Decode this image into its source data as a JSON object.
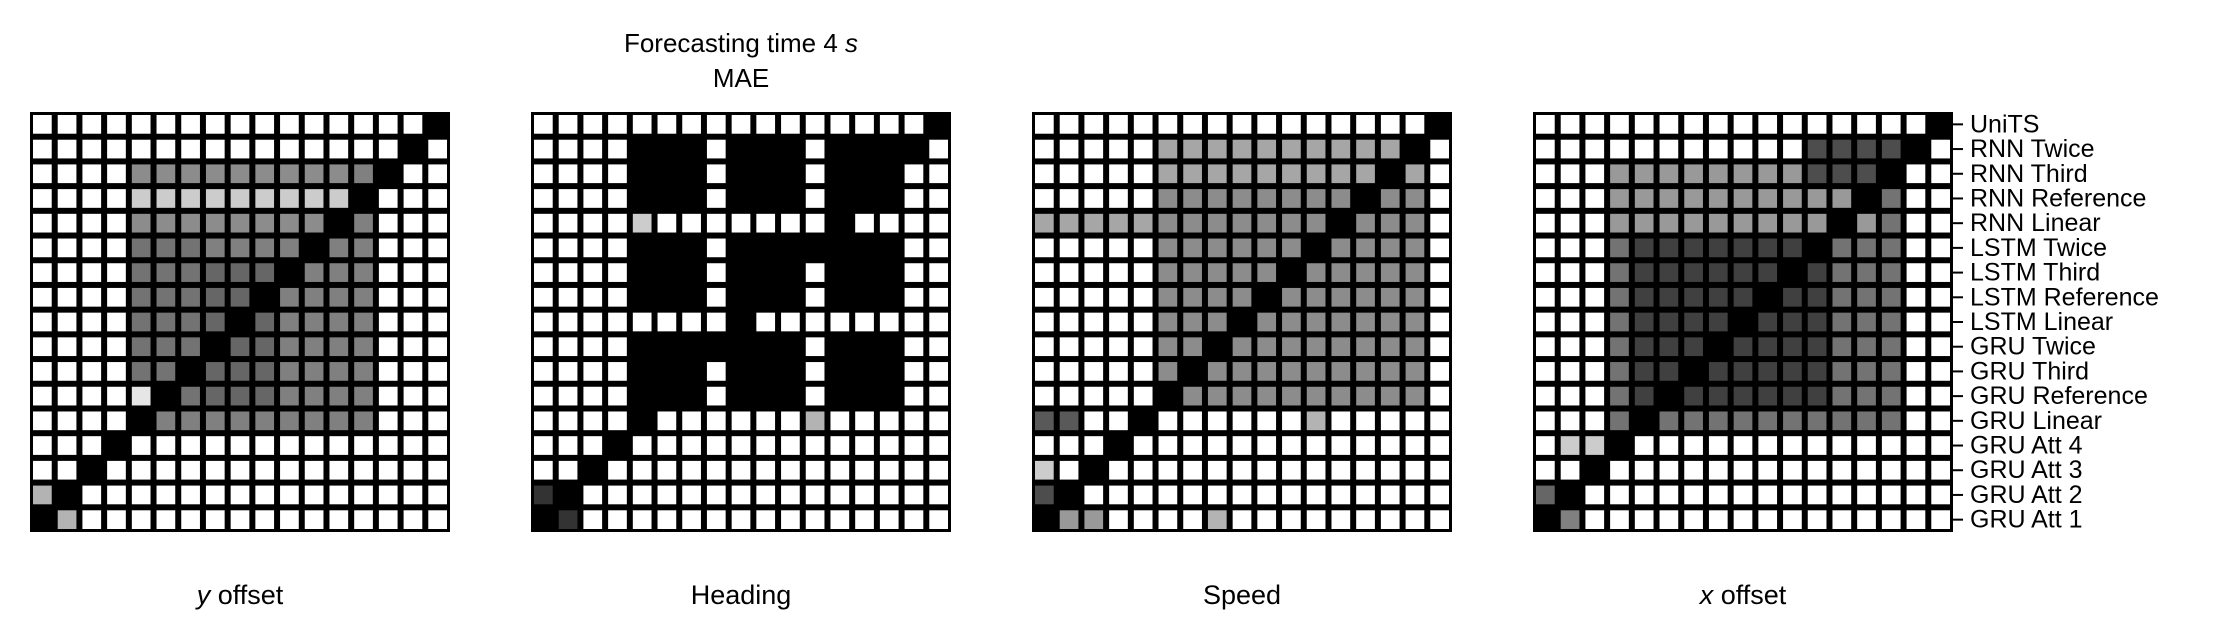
{
  "title": {
    "line1_prefix": "Forecasting time 4 ",
    "line1_unit": "s",
    "line2": "MAE"
  },
  "models": [
    "UniTS",
    "RNN Twice",
    "RNN Third",
    "RNN Reference",
    "RNN Linear",
    "LSTM Twice",
    "LSTM Third",
    "LSTM Reference",
    "LSTM Linear",
    "GRU Twice",
    "GRU Third",
    "GRU Reference",
    "GRU Linear",
    "GRU Att 4",
    "GRU Att 3",
    "GRU Att 2",
    "GRU Att 1"
  ],
  "chart_data": [
    {
      "type": "heatmap",
      "xlabel_var": "y",
      "xlabel_rest": " offset",
      "diagonal_value": 0,
      "blocks": [
        {
          "rows": [
            2,
            12
          ],
          "cols": [
            5,
            13
          ],
          "value": 0.5
        },
        {
          "rows": [
            5,
            11
          ],
          "cols": [
            4,
            6
          ],
          "value": 0.45
        },
        {
          "rows": [
            6,
            11
          ],
          "cols": [
            7,
            9
          ],
          "value": 0.4
        },
        {
          "rows": [
            2,
            4
          ],
          "cols": [
            4,
            12
          ],
          "value": 0.55
        },
        {
          "rows": [
            3,
            3
          ],
          "cols": [
            4,
            12
          ],
          "value": 0.8
        },
        {
          "rows": [
            16,
            16
          ],
          "cols": [
            1,
            1
          ],
          "value": 0.7
        },
        {
          "rows": [
            15,
            15
          ],
          "cols": [
            0,
            0
          ],
          "value": 0.7
        },
        {
          "rows": [
            11,
            11
          ],
          "cols": [
            4,
            4
          ],
          "value": 0.9
        }
      ]
    },
    {
      "type": "heatmap",
      "xlabel_var": "",
      "xlabel_rest": "Heading",
      "diagonal_value": 0,
      "blocks": [
        {
          "rows": [
            1,
            3
          ],
          "cols": [
            4,
            6
          ],
          "value": 0
        },
        {
          "rows": [
            1,
            3
          ],
          "cols": [
            8,
            10
          ],
          "value": 0
        },
        {
          "rows": [
            1,
            3
          ],
          "cols": [
            12,
            14
          ],
          "value": 0
        },
        {
          "rows": [
            5,
            7
          ],
          "cols": [
            4,
            6
          ],
          "value": 0
        },
        {
          "rows": [
            5,
            7
          ],
          "cols": [
            8,
            10
          ],
          "value": 0
        },
        {
          "rows": [
            5,
            7
          ],
          "cols": [
            12,
            14
          ],
          "value": 0
        },
        {
          "rows": [
            9,
            11
          ],
          "cols": [
            4,
            6
          ],
          "value": 0
        },
        {
          "rows": [
            9,
            11
          ],
          "cols": [
            8,
            10
          ],
          "value": 0
        },
        {
          "rows": [
            9,
            11
          ],
          "cols": [
            12,
            14
          ],
          "value": 0
        },
        {
          "rows": [
            4,
            4
          ],
          "cols": [
            4,
            4
          ],
          "value": 0.8
        },
        {
          "rows": [
            12,
            12
          ],
          "cols": [
            11,
            11
          ],
          "value": 0.7
        },
        {
          "rows": [
            15,
            15
          ],
          "cols": [
            0,
            0
          ],
          "value": 0.2
        },
        {
          "rows": [
            16,
            16
          ],
          "cols": [
            1,
            1
          ],
          "value": 0.2
        }
      ]
    },
    {
      "type": "heatmap",
      "xlabel_var": "",
      "xlabel_rest": "Speed",
      "diagonal_value": 0,
      "blocks": [
        {
          "rows": [
            1,
            11
          ],
          "cols": [
            5,
            15
          ],
          "value": 0.55
        },
        {
          "rows": [
            1,
            2
          ],
          "cols": [
            5,
            15
          ],
          "value": 0.65
        },
        {
          "rows": [
            4,
            4
          ],
          "cols": [
            0,
            4
          ],
          "value": 0.65
        },
        {
          "rows": [
            12,
            12
          ],
          "cols": [
            0,
            1
          ],
          "value": 0.35
        },
        {
          "rows": [
            14,
            14
          ],
          "cols": [
            0,
            0
          ],
          "value": 0.8
        },
        {
          "rows": [
            15,
            15
          ],
          "cols": [
            0,
            0
          ],
          "value": 0.3
        },
        {
          "rows": [
            16,
            16
          ],
          "cols": [
            1,
            2
          ],
          "value": 0.6
        },
        {
          "rows": [
            12,
            12
          ],
          "cols": [
            11,
            11
          ],
          "value": 0.7
        },
        {
          "rows": [
            16,
            16
          ],
          "cols": [
            7,
            7
          ],
          "value": 0.7
        }
      ]
    },
    {
      "type": "heatmap",
      "xlabel_var": "x",
      "xlabel_rest": " offset",
      "diagonal_value": 0,
      "blocks": [
        {
          "rows": [
            2,
            12
          ],
          "cols": [
            3,
            14
          ],
          "value": 0.45
        },
        {
          "rows": [
            5,
            11
          ],
          "cols": [
            4,
            11
          ],
          "value": 0.25
        },
        {
          "rows": [
            2,
            4
          ],
          "cols": [
            3,
            13
          ],
          "value": 0.6
        },
        {
          "rows": [
            1,
            2
          ],
          "cols": [
            11,
            14
          ],
          "value": 0.3
        },
        {
          "rows": [
            13,
            13
          ],
          "cols": [
            1,
            2
          ],
          "value": 0.8
        },
        {
          "rows": [
            15,
            15
          ],
          "cols": [
            0,
            0
          ],
          "value": 0.4
        },
        {
          "rows": [
            16,
            16
          ],
          "cols": [
            1,
            1
          ],
          "value": 0.5
        }
      ]
    }
  ]
}
